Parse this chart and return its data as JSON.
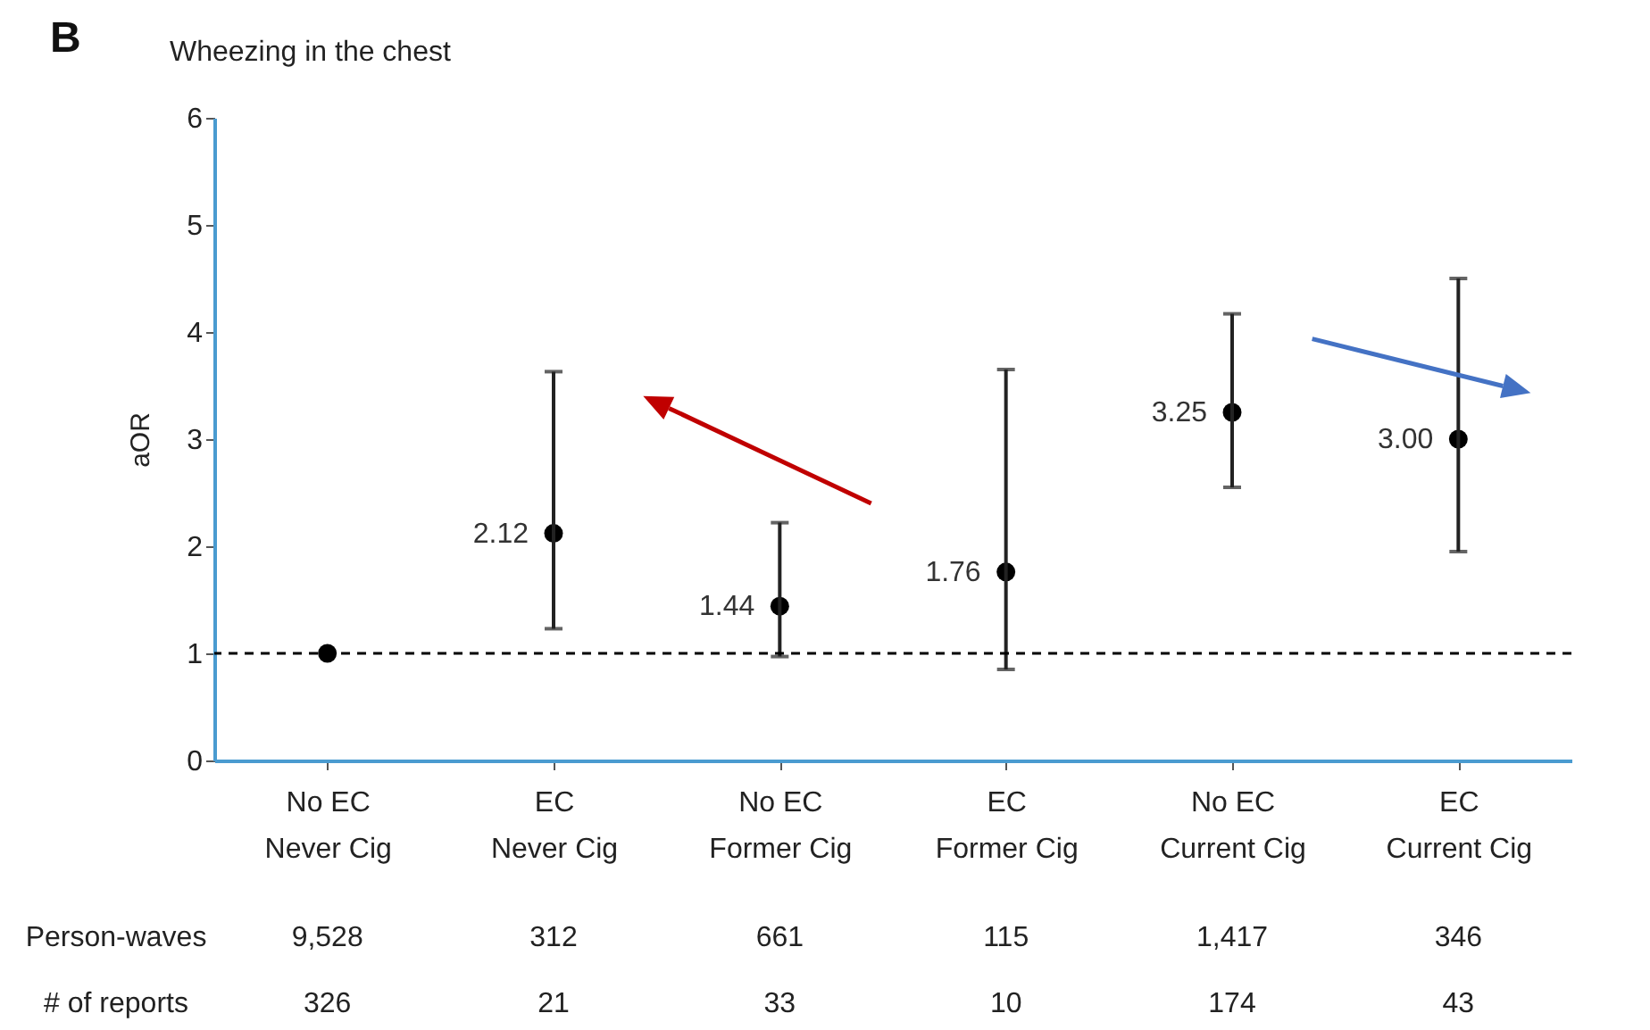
{
  "chart_data": {
    "type": "scatter",
    "title": "Wheezing in the chest",
    "ylabel": "aOR",
    "categories": [
      "No EC\nNever Cig",
      "EC\nNever Cig",
      "No EC\nFormer Cig",
      "EC\nFormer Cig",
      "No EC\nCurrent Cig",
      "EC\nCurrent Cig"
    ],
    "values": [
      1,
      2.12,
      1.44,
      1.76,
      3.25,
      3.0
    ],
    "errors": [
      null,
      [
        1.23,
        3.63
      ],
      [
        0.97,
        2.22
      ],
      [
        0.85,
        3.65
      ],
      [
        2.55,
        4.17
      ],
      [
        1.95,
        4.5
      ]
    ],
    "value_labels": [
      null,
      "2.12",
      "1.44",
      "1.76",
      "3.25",
      "3.00"
    ],
    "color": "#000000",
    "marker": "circle",
    "ylim": [
      0,
      6
    ],
    "yticks": [
      0,
      1,
      2,
      3,
      4,
      5,
      6
    ],
    "grid": false,
    "ref_lines": [
      {
        "axis": "y",
        "value": 1,
        "color": "#000000",
        "line_style": "dashed"
      }
    ],
    "annotations": [
      "B",
      "Person-waves",
      "9,528",
      "312",
      "661",
      "115",
      "1,417",
      "346",
      "# of reports",
      "326",
      "21",
      "33",
      "10",
      "174",
      "43"
    ]
  }
}
